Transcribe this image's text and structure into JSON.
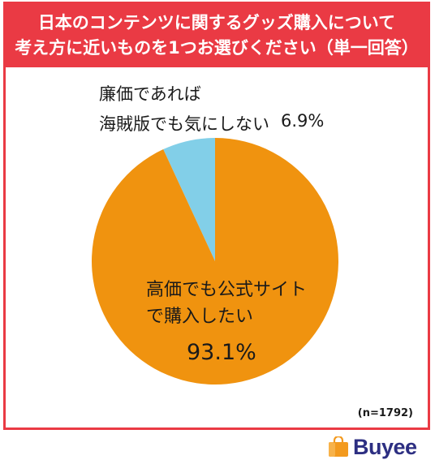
{
  "title": {
    "line1": "日本のコンテンツに関するグッズ購入について",
    "line2": "考え方に近いものを1つお選びください（単一回答）"
  },
  "sample_size": "(n=1792)",
  "brand": "Buyee",
  "colors": {
    "banner": "#ea3a44",
    "official": "#f0930f",
    "pirated": "#82cfe8"
  },
  "chart_data": {
    "type": "pie",
    "unit": "%",
    "slices": [
      {
        "label_lines": [
          "廉価であれば",
          "海賊版でも気にしない"
        ],
        "value": 6.9,
        "value_label": "6.9%",
        "color": "#82cfe8"
      },
      {
        "label_lines": [
          "高価でも公式サイト",
          "で購入したい"
        ],
        "value": 93.1,
        "value_label": "93.1%",
        "color": "#f0930f"
      }
    ]
  }
}
